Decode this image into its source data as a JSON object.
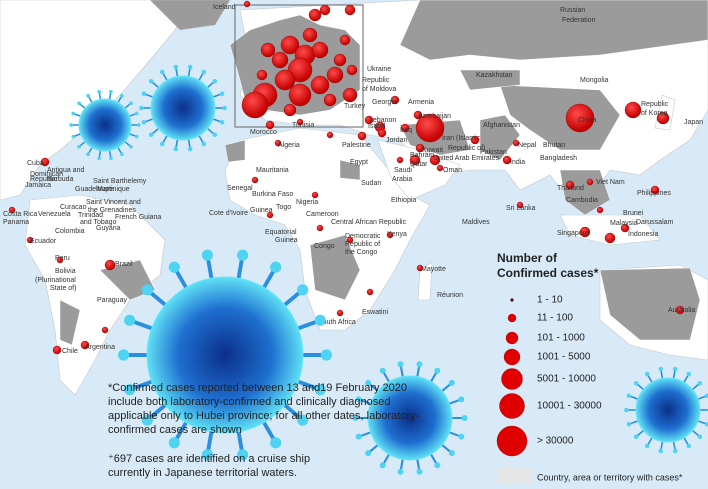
{
  "legend": {
    "title": [
      "Number of",
      "Confirmed cases*"
    ],
    "items": [
      "1 - 10",
      "11 - 100",
      "101 - 1000",
      "1001 - 5000",
      "5001 - 10000",
      "10001 - 30000",
      "> 30000"
    ],
    "area_note": "Country, area or territory with cases*"
  },
  "notes": {
    "confirmed": [
      "*Confirmed cases reported between 13 and19 February 2020",
      "include both laboratory-confirmed and clinically diagnosed",
      "applicable only to Hubei province; for all other dates, laboratory-",
      "confirmed cases are shown"
    ],
    "cruise_ship": [
      "⁺697 cases are identified on a cruise ship",
      "currently in Japanese territorial waters."
    ]
  },
  "labels": [
    "Iceland",
    "Russian",
    "Federation",
    "Kazakhstan",
    "Mongolia",
    "Ukraine",
    "Republic",
    "of Moldova",
    "Georgia",
    "Armenia",
    "Azerbaijan",
    "Turkey",
    "Iran (Islamic",
    "Republic of)",
    "Afghanistan",
    "Pakistan",
    "Nepal",
    "Bhutan",
    "Bangladesh",
    "India",
    "China",
    "Republic",
    "of Korea",
    "Japan",
    "Iraq",
    "Israel",
    "Lebanon",
    "Jordan",
    "Kuwait",
    "Bahrain",
    "Qatar",
    "United Arab Emirates",
    "Oman",
    "Saudi",
    "Arabia",
    "Egypt",
    "Palestine",
    "Sudan",
    "Ethiopia",
    "Kenya",
    "Democratic",
    "Republic of",
    "the Congo",
    "Congo",
    "Cameroon",
    "Nigeria",
    "Central African Republic",
    "Equatorial",
    "Guinea",
    "Mayotte",
    "Réunion",
    "South Africa",
    "Eswatini",
    "Algeria",
    "Morocco",
    "Tunisia",
    "Mauritania",
    "Senegal",
    "Burkina Faso",
    "Togo",
    "Cote d'Ivoire",
    "Guinea",
    "Maldives",
    "Sri Lanka",
    "Thailand",
    "Viet Nam",
    "Cambodia",
    "Philippines",
    "Brunei",
    "Darussalam",
    "Malaysia",
    "Singapore",
    "Indonesia",
    "Australia",
    "Cuba",
    "Antigua and",
    "Barbuda",
    "Dominican",
    "Republic",
    "Saint Barthelemy",
    "Jamaica",
    "Guadeloupe",
    "Martinique",
    "Saint Vincent and",
    "the Grenadines",
    "Trinidad",
    "and Tobago",
    "Curacao",
    "Costa Rica",
    "Panama",
    "Venezuela",
    "Colombia",
    "French Guiana",
    "Guyana",
    "Ecuador",
    "Peru",
    "Bolivia",
    "(Plurinational",
    "State of)",
    "Brazil",
    "Paraguay",
    "Chile",
    "Argentina"
  ]
}
